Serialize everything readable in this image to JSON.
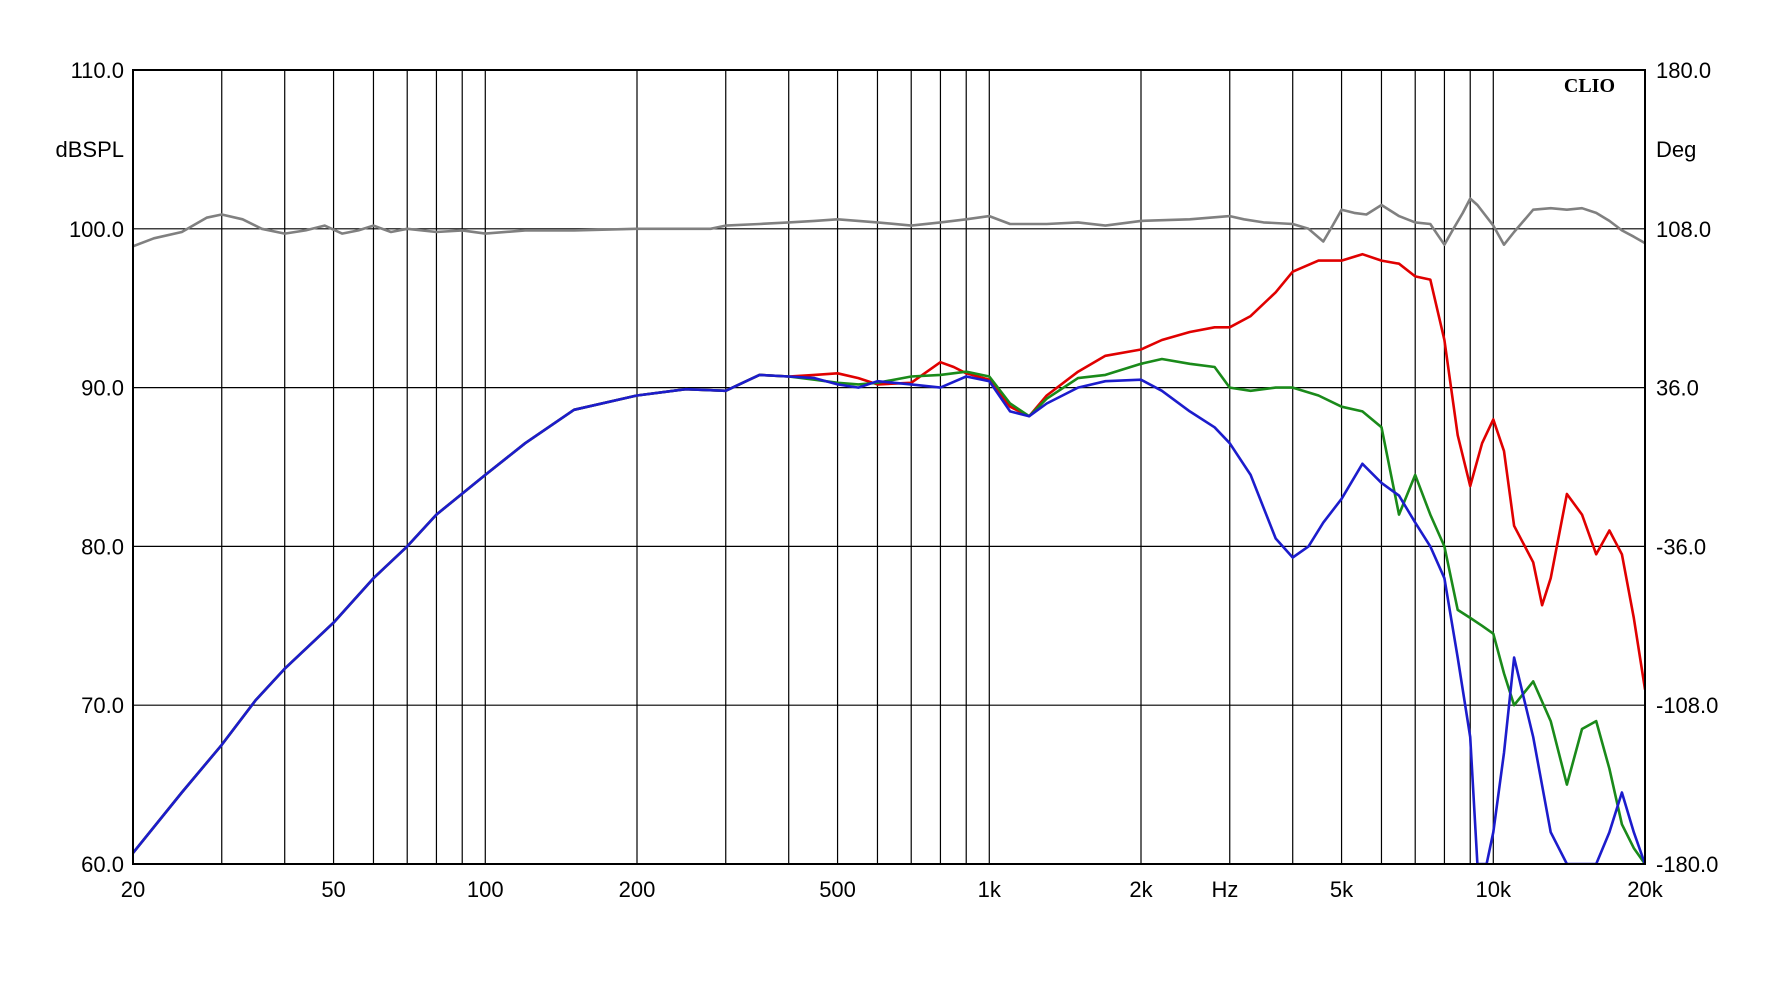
{
  "chart_data": {
    "type": "line",
    "brand": "CLIO",
    "x_scale": "log",
    "xlim": [
      20,
      20000
    ],
    "ylim_left": [
      60,
      110
    ],
    "ylim_right": [
      -180,
      180
    ],
    "grid": true,
    "left_axis_unit": "dBSPL",
    "right_axis_unit": "Deg",
    "x_axis_unit": "Hz",
    "x_ticks": [
      {
        "value": 20,
        "label": "20"
      },
      {
        "value": 50,
        "label": "50"
      },
      {
        "value": 100,
        "label": "100"
      },
      {
        "value": 200,
        "label": "200"
      },
      {
        "value": 500,
        "label": "500"
      },
      {
        "value": 1000,
        "label": "1k"
      },
      {
        "value": 2000,
        "label": "2k"
      },
      {
        "value": 5000,
        "label": "5k"
      },
      {
        "value": 10000,
        "label": "10k"
      },
      {
        "value": 20000,
        "label": "20k"
      }
    ],
    "x_gridlines": [
      20,
      30,
      40,
      50,
      60,
      70,
      80,
      90,
      100,
      200,
      300,
      400,
      500,
      600,
      700,
      800,
      900,
      1000,
      2000,
      3000,
      4000,
      5000,
      6000,
      7000,
      8000,
      9000,
      10000,
      20000
    ],
    "left_ticks": [
      {
        "value": 60,
        "label": "60.0"
      },
      {
        "value": 70,
        "label": "70.0"
      },
      {
        "value": 80,
        "label": "80.0"
      },
      {
        "value": 90,
        "label": "90.0"
      },
      {
        "value": 100,
        "label": "100.0"
      },
      {
        "value": 110,
        "label": "110.0"
      }
    ],
    "right_ticks": [
      {
        "value": -180,
        "label": "-180.0"
      },
      {
        "value": -108,
        "label": "-108.0"
      },
      {
        "value": -36,
        "label": "-36.0"
      },
      {
        "value": 36,
        "label": "36.0"
      },
      {
        "value": 108,
        "label": "108.0"
      },
      {
        "value": 180,
        "label": "180.0"
      }
    ],
    "series": [
      {
        "color": "#808080",
        "axis": "left",
        "points": [
          [
            20,
            98.9
          ],
          [
            22,
            99.4
          ],
          [
            25,
            99.8
          ],
          [
            28,
            100.7
          ],
          [
            30,
            100.9
          ],
          [
            33,
            100.6
          ],
          [
            36,
            100.0
          ],
          [
            40,
            99.7
          ],
          [
            44,
            99.9
          ],
          [
            48,
            100.2
          ],
          [
            52,
            99.7
          ],
          [
            56,
            99.9
          ],
          [
            60,
            100.2
          ],
          [
            65,
            99.8
          ],
          [
            70,
            100.0
          ],
          [
            80,
            99.8
          ],
          [
            90,
            99.9
          ],
          [
            100,
            99.7
          ],
          [
            120,
            99.9
          ],
          [
            150,
            99.9
          ],
          [
            200,
            100.0
          ],
          [
            250,
            100.0
          ],
          [
            280,
            100.0
          ],
          [
            300,
            100.2
          ],
          [
            350,
            100.3
          ],
          [
            400,
            100.4
          ],
          [
            450,
            100.5
          ],
          [
            500,
            100.6
          ],
          [
            550,
            100.5
          ],
          [
            600,
            100.4
          ],
          [
            700,
            100.2
          ],
          [
            800,
            100.4
          ],
          [
            900,
            100.6
          ],
          [
            1000,
            100.8
          ],
          [
            1100,
            100.3
          ],
          [
            1300,
            100.3
          ],
          [
            1500,
            100.4
          ],
          [
            1700,
            100.2
          ],
          [
            2000,
            100.5
          ],
          [
            2500,
            100.6
          ],
          [
            3000,
            100.8
          ],
          [
            3200,
            100.6
          ],
          [
            3500,
            100.4
          ],
          [
            4000,
            100.3
          ],
          [
            4300,
            100.0
          ],
          [
            4600,
            99.2
          ],
          [
            4800,
            100.2
          ],
          [
            5000,
            101.2
          ],
          [
            5300,
            101.0
          ],
          [
            5600,
            100.9
          ],
          [
            6000,
            101.5
          ],
          [
            6500,
            100.8
          ],
          [
            7000,
            100.4
          ],
          [
            7500,
            100.3
          ],
          [
            7800,
            99.5
          ],
          [
            8000,
            99.0
          ],
          [
            8300,
            99.9
          ],
          [
            8700,
            101.0
          ],
          [
            9000,
            101.9
          ],
          [
            9300,
            101.5
          ],
          [
            10000,
            100.2
          ],
          [
            10500,
            99.0
          ],
          [
            11000,
            99.8
          ],
          [
            12000,
            101.2
          ],
          [
            13000,
            101.3
          ],
          [
            14000,
            101.2
          ],
          [
            15000,
            101.3
          ],
          [
            16000,
            101.0
          ],
          [
            17000,
            100.5
          ],
          [
            18000,
            99.9
          ],
          [
            19000,
            99.5
          ],
          [
            20000,
            99.1
          ]
        ]
      },
      {
        "color": "#e00000",
        "axis": "left",
        "points": [
          [
            20,
            60.7
          ],
          [
            25,
            64.5
          ],
          [
            30,
            67.5
          ],
          [
            35,
            70.3
          ],
          [
            40,
            72.3
          ],
          [
            50,
            75.2
          ],
          [
            60,
            78.0
          ],
          [
            70,
            80.0
          ],
          [
            80,
            82.0
          ],
          [
            100,
            84.5
          ],
          [
            120,
            86.5
          ],
          [
            150,
            88.6
          ],
          [
            200,
            89.5
          ],
          [
            250,
            89.9
          ],
          [
            300,
            89.8
          ],
          [
            350,
            90.8
          ],
          [
            400,
            90.7
          ],
          [
            450,
            90.8
          ],
          [
            500,
            90.9
          ],
          [
            550,
            90.6
          ],
          [
            600,
            90.2
          ],
          [
            700,
            90.3
          ],
          [
            800,
            91.6
          ],
          [
            850,
            91.3
          ],
          [
            900,
            90.9
          ],
          [
            1000,
            90.5
          ],
          [
            1100,
            88.8
          ],
          [
            1200,
            88.2
          ],
          [
            1300,
            89.5
          ],
          [
            1500,
            91.0
          ],
          [
            1700,
            92.0
          ],
          [
            2000,
            92.4
          ],
          [
            2200,
            93.0
          ],
          [
            2500,
            93.5
          ],
          [
            2800,
            93.8
          ],
          [
            3000,
            93.8
          ],
          [
            3300,
            94.5
          ],
          [
            3700,
            96.0
          ],
          [
            4000,
            97.3
          ],
          [
            4500,
            98.0
          ],
          [
            5000,
            98.0
          ],
          [
            5500,
            98.4
          ],
          [
            6000,
            98.0
          ],
          [
            6500,
            97.8
          ],
          [
            7000,
            97.0
          ],
          [
            7500,
            96.8
          ],
          [
            8000,
            93.0
          ],
          [
            8500,
            87.0
          ],
          [
            9000,
            83.8
          ],
          [
            9500,
            86.5
          ],
          [
            10000,
            88.0
          ],
          [
            10500,
            86.0
          ],
          [
            11000,
            81.3
          ],
          [
            12000,
            79.0
          ],
          [
            12500,
            76.3
          ],
          [
            13000,
            78.0
          ],
          [
            14000,
            83.3
          ],
          [
            15000,
            82.0
          ],
          [
            16000,
            79.5
          ],
          [
            17000,
            81.0
          ],
          [
            18000,
            79.5
          ],
          [
            19000,
            75.5
          ],
          [
            20000,
            71.0
          ]
        ]
      },
      {
        "color": "#1a8a1a",
        "axis": "left",
        "points": [
          [
            20,
            60.7
          ],
          [
            25,
            64.5
          ],
          [
            30,
            67.5
          ],
          [
            35,
            70.3
          ],
          [
            40,
            72.3
          ],
          [
            50,
            75.2
          ],
          [
            60,
            78.0
          ],
          [
            70,
            80.0
          ],
          [
            80,
            82.0
          ],
          [
            100,
            84.5
          ],
          [
            120,
            86.5
          ],
          [
            150,
            88.6
          ],
          [
            200,
            89.5
          ],
          [
            250,
            89.9
          ],
          [
            300,
            89.8
          ],
          [
            350,
            90.8
          ],
          [
            400,
            90.7
          ],
          [
            450,
            90.5
          ],
          [
            500,
            90.3
          ],
          [
            550,
            90.2
          ],
          [
            600,
            90.3
          ],
          [
            700,
            90.7
          ],
          [
            800,
            90.8
          ],
          [
            900,
            91.0
          ],
          [
            1000,
            90.7
          ],
          [
            1100,
            89.0
          ],
          [
            1200,
            88.2
          ],
          [
            1300,
            89.3
          ],
          [
            1500,
            90.6
          ],
          [
            1700,
            90.8
          ],
          [
            2000,
            91.5
          ],
          [
            2200,
            91.8
          ],
          [
            2500,
            91.5
          ],
          [
            2800,
            91.3
          ],
          [
            3000,
            90.0
          ],
          [
            3300,
            89.8
          ],
          [
            3700,
            90.0
          ],
          [
            4000,
            90.0
          ],
          [
            4500,
            89.5
          ],
          [
            5000,
            88.8
          ],
          [
            5500,
            88.5
          ],
          [
            6000,
            87.5
          ],
          [
            6500,
            82.0
          ],
          [
            7000,
            84.5
          ],
          [
            7500,
            82.0
          ],
          [
            8000,
            80.0
          ],
          [
            8500,
            76.0
          ],
          [
            9000,
            75.5
          ],
          [
            9500,
            75.0
          ],
          [
            10000,
            74.5
          ],
          [
            10500,
            72.0
          ],
          [
            11000,
            70.0
          ],
          [
            12000,
            71.5
          ],
          [
            13000,
            69.0
          ],
          [
            14000,
            65.0
          ],
          [
            15000,
            68.5
          ],
          [
            16000,
            69.0
          ],
          [
            17000,
            66.0
          ],
          [
            18000,
            62.5
          ],
          [
            19000,
            61.0
          ],
          [
            20000,
            60.0
          ]
        ]
      },
      {
        "color": "#1c1ccc",
        "axis": "left",
        "points": [
          [
            20,
            60.7
          ],
          [
            25,
            64.5
          ],
          [
            30,
            67.5
          ],
          [
            35,
            70.3
          ],
          [
            40,
            72.3
          ],
          [
            50,
            75.2
          ],
          [
            60,
            78.0
          ],
          [
            70,
            80.0
          ],
          [
            80,
            82.0
          ],
          [
            100,
            84.5
          ],
          [
            120,
            86.5
          ],
          [
            150,
            88.6
          ],
          [
            200,
            89.5
          ],
          [
            250,
            89.9
          ],
          [
            300,
            89.8
          ],
          [
            350,
            90.8
          ],
          [
            400,
            90.7
          ],
          [
            450,
            90.6
          ],
          [
            500,
            90.2
          ],
          [
            550,
            90.0
          ],
          [
            600,
            90.4
          ],
          [
            700,
            90.2
          ],
          [
            800,
            90.0
          ],
          [
            900,
            90.7
          ],
          [
            1000,
            90.4
          ],
          [
            1100,
            88.5
          ],
          [
            1200,
            88.2
          ],
          [
            1300,
            89.0
          ],
          [
            1500,
            90.0
          ],
          [
            1700,
            90.4
          ],
          [
            2000,
            90.5
          ],
          [
            2200,
            89.8
          ],
          [
            2500,
            88.5
          ],
          [
            2800,
            87.5
          ],
          [
            3000,
            86.5
          ],
          [
            3300,
            84.5
          ],
          [
            3700,
            80.5
          ],
          [
            4000,
            79.3
          ],
          [
            4300,
            80.0
          ],
          [
            4600,
            81.5
          ],
          [
            5000,
            83.0
          ],
          [
            5500,
            85.2
          ],
          [
            6000,
            84.0
          ],
          [
            6500,
            83.2
          ],
          [
            7000,
            81.5
          ],
          [
            7500,
            80.0
          ],
          [
            8000,
            78.0
          ],
          [
            8500,
            73.0
          ],
          [
            9000,
            68.0
          ],
          [
            9300,
            60.0
          ],
          [
            9700,
            60.0
          ],
          [
            10000,
            62.0
          ],
          [
            10500,
            67.0
          ],
          [
            11000,
            73.0
          ],
          [
            12000,
            68.0
          ],
          [
            13000,
            62.0
          ],
          [
            14000,
            60.0
          ],
          [
            16000,
            60.0
          ],
          [
            17000,
            62.0
          ],
          [
            18000,
            64.5
          ],
          [
            19000,
            62.0
          ],
          [
            20000,
            60.0
          ]
        ]
      }
    ]
  }
}
